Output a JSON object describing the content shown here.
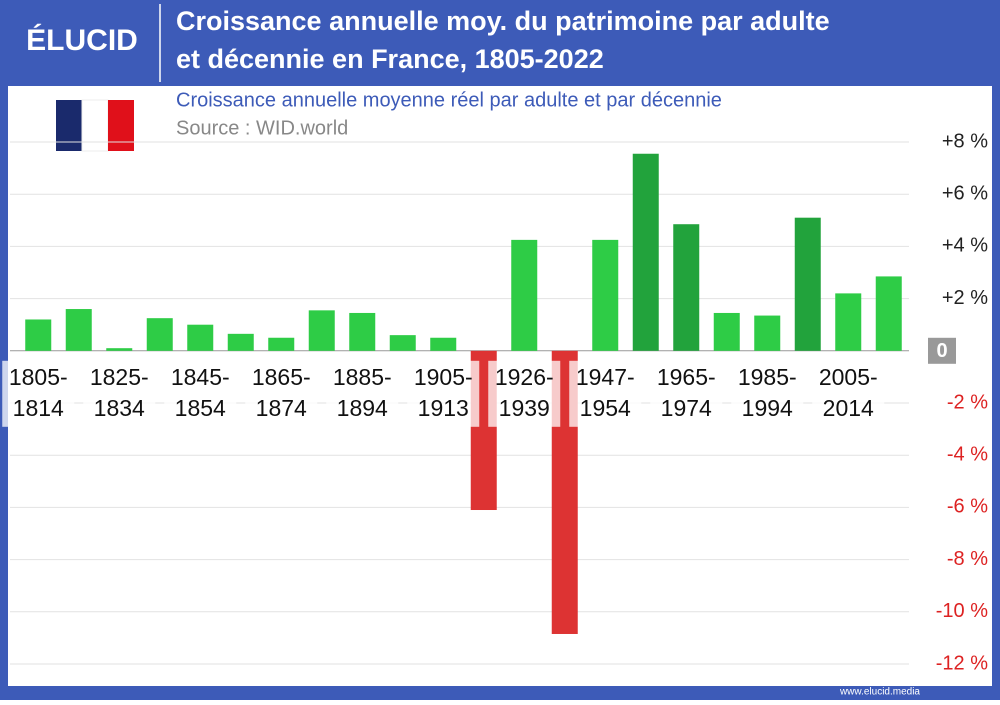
{
  "brand": "ÉLUCID",
  "footer": "www.elucid.media",
  "chart_data": {
    "type": "bar",
    "title": "Croissance annuelle moy. du patrimoine par adulte",
    "title_line2": "et décennie en France, 1805-2022",
    "subtitle": "Croissance annuelle moyenne réel par adulte et par décennie",
    "source": "Source : WID.world",
    "categories": [
      "1805-1814",
      null,
      "1825-1834",
      null,
      "1845-1854",
      null,
      "1865-1874",
      null,
      "1885-1894",
      null,
      "1905-1913",
      null,
      "1926-1939",
      null,
      "1947-1954",
      null,
      "1965-1974",
      null,
      "1985-1994",
      null,
      "2005-2014",
      null
    ],
    "values": [
      1.2,
      1.6,
      0.1,
      1.25,
      1.0,
      0.65,
      0.5,
      1.55,
      1.45,
      0.6,
      0.5,
      -6.1,
      4.25,
      -10.85,
      4.25,
      7.55,
      4.85,
      1.45,
      1.35,
      5.1,
      2.2,
      2.85
    ],
    "colors": [
      "#2ecc46",
      "#2ecc46",
      "#2ecc46",
      "#2ecc46",
      "#2ecc46",
      "#2ecc46",
      "#2ecc46",
      "#2ecc46",
      "#2ecc46",
      "#2ecc46",
      "#2ecc46",
      "#dd3333",
      "#2ecc46",
      "#dd3333",
      "#2ecc46",
      "#22a33c",
      "#22a33c",
      "#2ecc46",
      "#2ecc46",
      "#22a33c",
      "#2ecc46",
      "#2ecc46"
    ],
    "ylim": [
      -12,
      8
    ],
    "yticks": [
      {
        "value": 8,
        "label": "+8 %"
      },
      {
        "value": 6,
        "label": "+6 %"
      },
      {
        "value": 4,
        "label": "+4 %"
      },
      {
        "value": 2,
        "label": "+2 %"
      },
      0,
      {
        "value": -2,
        "label": "-2 %"
      },
      {
        "value": -4,
        "label": "-4 %"
      },
      {
        "value": -6,
        "label": "-6 %"
      },
      {
        "value": -8,
        "label": "-8 %"
      },
      {
        "value": -10,
        "label": "-10 %"
      },
      {
        "value": -12,
        "label": "-12 %"
      }
    ],
    "grid": true,
    "positive_tick_color": "#222222",
    "negative_tick_color": "#dd2222"
  }
}
